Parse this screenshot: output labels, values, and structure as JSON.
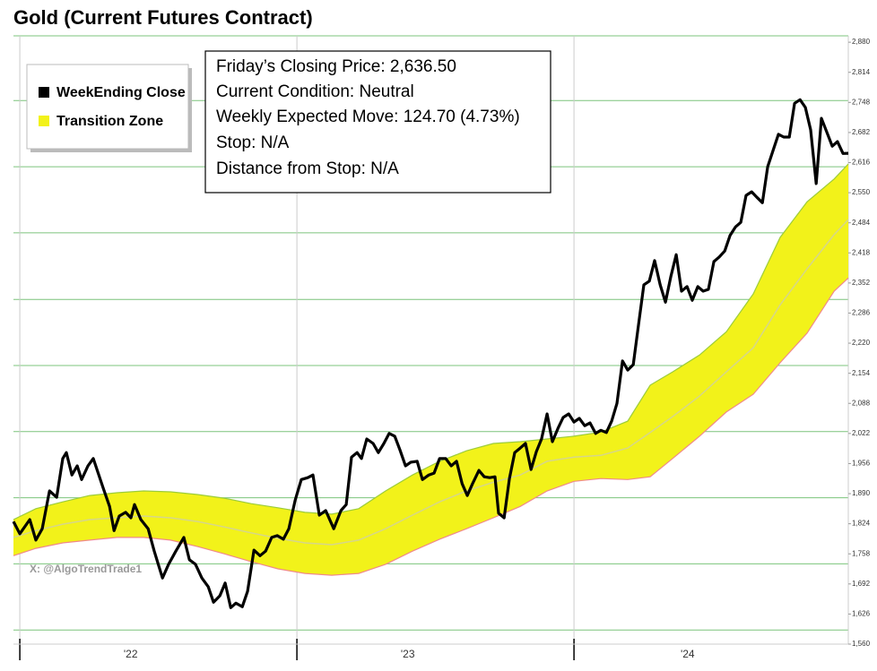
{
  "chart_data": {
    "type": "line",
    "title": "Gold (Current Futures Contract)",
    "annotations": [
      "Friday’s Closing Price: 2,636.50",
      "Current Condition: Neutral",
      "Weekly Expected Move: 124.70 (4.73%)",
      "Stop: N/A",
      "Distance from Stop: N/A"
    ],
    "watermark": "X: @AlgoTrendTrade1",
    "xlim": [
      2021.977,
      2024.99
    ],
    "xticks": [
      2022,
      2023,
      2024
    ],
    "xlabels": [
      {
        "value": 2022.4,
        "label": "'22"
      },
      {
        "value": 2023.4,
        "label": "'23"
      },
      {
        "value": 2024.41,
        "label": "'24"
      }
    ],
    "ylim": [
      1560,
      2894
    ],
    "yticks": [
      {
        "value": 1560,
        "label": "1,560"
      },
      {
        "value": 1626,
        "label": "1,626"
      },
      {
        "value": 1692,
        "label": "1,692"
      },
      {
        "value": 1758,
        "label": "1,758"
      },
      {
        "value": 1824,
        "label": "1,824"
      },
      {
        "value": 1890,
        "label": "1,890"
      },
      {
        "value": 1956,
        "label": "1,956"
      },
      {
        "value": 2022,
        "label": "2,022"
      },
      {
        "value": 2088,
        "label": "2,088"
      },
      {
        "value": 2154,
        "label": "2,154"
      },
      {
        "value": 2220,
        "label": "2,220"
      },
      {
        "value": 2286,
        "label": "2,286"
      },
      {
        "value": 2352,
        "label": "2,352"
      },
      {
        "value": 2418,
        "label": "2,418"
      },
      {
        "value": 2484,
        "label": "2,484"
      },
      {
        "value": 2550,
        "label": "2,550"
      },
      {
        "value": 2616,
        "label": "2,616"
      },
      {
        "value": 2682,
        "label": "2,682"
      },
      {
        "value": 2748,
        "label": "2,748"
      },
      {
        "value": 2814,
        "label": "2,814"
      },
      {
        "value": 2880,
        "label": "2,880"
      }
    ],
    "hgrid": [
      2894,
      2752,
      2607,
      2462,
      2316,
      2171,
      2026,
      1881,
      1736,
      1591
    ],
    "grid_color": "#7cc47c",
    "series": [
      {
        "name": "WeekEnding Close",
        "color": "#000000",
        "x": [
          2021.977,
          2022.0,
          2022.036,
          2022.058,
          2022.081,
          2022.107,
          2022.133,
          2022.155,
          2022.168,
          2022.188,
          2022.207,
          2022.223,
          2022.246,
          2022.265,
          2022.285,
          2022.301,
          2022.324,
          2022.34,
          2022.359,
          2022.382,
          2022.401,
          2022.414,
          2022.437,
          2022.463,
          2022.485,
          2022.515,
          2022.537,
          2022.563,
          2022.592,
          2022.612,
          2022.634,
          2022.657,
          2022.68,
          2022.699,
          2022.722,
          2022.741,
          2022.761,
          2022.78,
          2022.803,
          2022.822,
          2022.845,
          2022.867,
          2022.887,
          2022.909,
          2022.929,
          2022.951,
          2022.971,
          2022.994,
          2023.016,
          2023.039,
          2023.058,
          2023.081,
          2023.104,
          2023.133,
          2023.159,
          2023.178,
          2023.197,
          2023.217,
          2023.233,
          2023.252,
          2023.275,
          2023.294,
          2023.314,
          2023.333,
          2023.353,
          2023.372,
          2023.392,
          2023.411,
          2023.434,
          2023.453,
          2023.476,
          2023.495,
          2023.515,
          2023.537,
          2023.557,
          2023.576,
          2023.596,
          2023.615,
          2023.634,
          2023.657,
          2023.676,
          2023.696,
          2023.715,
          2023.728,
          2023.748,
          2023.767,
          2023.786,
          2023.806,
          2023.825,
          2023.845,
          2023.864,
          2023.883,
          2023.903,
          2023.922,
          2023.942,
          2023.961,
          2023.981,
          2024.0,
          2024.019,
          2024.039,
          2024.058,
          2024.078,
          2024.097,
          2024.117,
          2024.136,
          2024.155,
          2024.175,
          2024.194,
          2024.214,
          2024.233,
          2024.252,
          2024.272,
          2024.291,
          2024.311,
          2024.33,
          2024.35,
          2024.369,
          2024.388,
          2024.408,
          2024.427,
          2024.447,
          2024.466,
          2024.485,
          2024.505,
          2024.524,
          2024.544,
          2024.563,
          2024.583,
          2024.602,
          2024.621,
          2024.641,
          2024.66,
          2024.68,
          2024.699,
          2024.718,
          2024.738,
          2024.757,
          2024.777,
          2024.796,
          2024.816,
          2024.835,
          2024.854,
          2024.874,
          2024.893,
          2024.913,
          2024.932,
          2024.951,
          2024.971,
          2024.99
        ],
        "values": [
          1829,
          1802,
          1833,
          1788,
          1813,
          1896,
          1882,
          1967,
          1980,
          1931,
          1951,
          1921,
          1951,
          1967,
          1931,
          1902,
          1862,
          1809,
          1841,
          1849,
          1837,
          1866,
          1833,
          1813,
          1764,
          1705,
          1735,
          1764,
          1794,
          1745,
          1735,
          1705,
          1686,
          1652,
          1666,
          1694,
          1640,
          1650,
          1642,
          1676,
          1766,
          1754,
          1764,
          1794,
          1798,
          1790,
          1813,
          1876,
          1921,
          1925,
          1931,
          1843,
          1853,
          1813,
          1853,
          1866,
          1970,
          1980,
          1967,
          2010,
          2000,
          1980,
          2000,
          2022,
          2016,
          1986,
          1951,
          1959,
          1961,
          1921,
          1931,
          1935,
          1967,
          1967,
          1951,
          1961,
          1912,
          1886,
          1912,
          1941,
          1927,
          1925,
          1927,
          1847,
          1837,
          1923,
          1980,
          1990,
          2000,
          1943,
          1982,
          2010,
          2065,
          2004,
          2033,
          2057,
          2065,
          2047,
          2055,
          2039,
          2045,
          2022,
          2029,
          2024,
          2049,
          2088,
          2181,
          2161,
          2173,
          2261,
          2348,
          2356,
          2401,
          2348,
          2310,
          2367,
          2414,
          2334,
          2344,
          2314,
          2344,
          2334,
          2338,
          2399,
          2409,
          2422,
          2456,
          2475,
          2485,
          2544,
          2552,
          2540,
          2528,
          2607,
          2642,
          2678,
          2672,
          2672,
          2746,
          2754,
          2737,
          2688,
          2570,
          2713,
          2682,
          2652,
          2662,
          2636,
          2636.5
        ]
      },
      {
        "name": "Transition Zone",
        "color": "#f2f21a",
        "upper_color": "#9ccc3a",
        "lower_color": "#f08a8a",
        "middle_color": "#d6d68a",
        "x": [
          2021.977,
          2022.058,
          2022.155,
          2022.252,
          2022.35,
          2022.447,
          2022.544,
          2022.641,
          2022.738,
          2022.835,
          2022.932,
          2023.029,
          2023.126,
          2023.223,
          2023.32,
          2023.417,
          2023.515,
          2023.612,
          2023.709,
          2023.806,
          2023.903,
          2024.0,
          2024.097,
          2024.194,
          2024.275,
          2024.356,
          2024.453,
          2024.55,
          2024.647,
          2024.744,
          2024.841,
          2024.939,
          2024.99
        ],
        "upper": [
          1833,
          1857,
          1872,
          1886,
          1892,
          1896,
          1894,
          1888,
          1880,
          1868,
          1859,
          1849,
          1845,
          1857,
          1896,
          1931,
          1961,
          1984,
          2000,
          2004,
          2010,
          2016,
          2025,
          2049,
          2128,
          2157,
          2194,
          2245,
          2328,
          2452,
          2530,
          2580,
          2613
        ],
        "lower": [
          1754,
          1770,
          1782,
          1788,
          1794,
          1794,
          1788,
          1774,
          1758,
          1741,
          1725,
          1715,
          1711,
          1715,
          1735,
          1764,
          1790,
          1813,
          1837,
          1862,
          1896,
          1917,
          1923,
          1921,
          1927,
          1967,
          2016,
          2069,
          2108,
          2177,
          2242,
          2334,
          2363
        ],
        "middle": [
          1794,
          1809,
          1823,
          1833,
          1837,
          1841,
          1837,
          1829,
          1817,
          1804,
          1792,
          1782,
          1778,
          1788,
          1813,
          1843,
          1872,
          1896,
          1915,
          1931,
          1961,
          1970,
          1974,
          1990,
          2024,
          2059,
          2104,
          2157,
          2210,
          2304,
          2383,
          2458,
          2491
        ]
      }
    ]
  }
}
